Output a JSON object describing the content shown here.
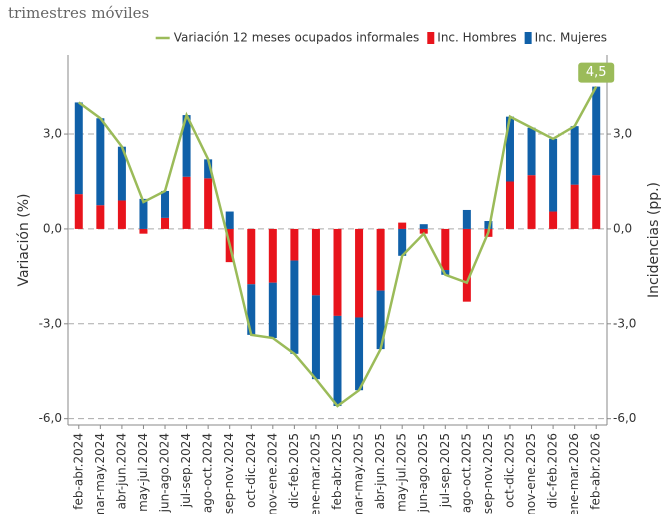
{
  "chart_data": {
    "type": "bar-line",
    "subtitle": "trimestres móviles",
    "y_label": "Variación (%)",
    "y2_label": "Incidencias (pp.)",
    "categories": [
      "feb-abr.2024",
      "mar-may.2024",
      "abr-jun.2024",
      "may-jul.2024",
      "jun-ago.2024",
      "jul-sep.2024",
      "ago-oct.2024",
      "sep-nov.2024",
      "oct-dic.2024",
      "nov-ene.2024",
      "dic-feb.2025",
      "ene-mar.2025",
      "feb-abr.2025",
      "mar-may.2025",
      "abr-jun.2025",
      "may-jul.2025",
      "jun-ago.2025",
      "jul-sep.2025",
      "ago-oct.2025",
      "sep-nov.2025",
      "oct-dic.2025",
      "nov-ene.2025",
      "dic-feb.2026",
      "ene-mar.2026",
      "feb-abr.2026"
    ],
    "series": [
      {
        "name": "Variación 12 meses ocupados informales",
        "type": "line",
        "color": "#9bbb59",
        "values": [
          4.0,
          3.5,
          2.6,
          0.85,
          1.2,
          3.6,
          2.2,
          -0.5,
          -3.35,
          -3.45,
          -3.95,
          -4.75,
          -5.6,
          -5.1,
          -3.8,
          -0.85,
          -0.15,
          -1.45,
          -1.7,
          -0.1,
          3.55,
          3.2,
          2.85,
          3.25,
          4.5
        ],
        "value_labels": [
          null,
          null,
          null,
          null,
          null,
          null,
          null,
          null,
          null,
          null,
          null,
          null,
          null,
          null,
          null,
          null,
          null,
          null,
          null,
          null,
          null,
          null,
          null,
          null,
          "4,5"
        ]
      },
      {
        "name": "Inc. Hombres",
        "type": "bar",
        "axis": "y2",
        "color": "#e8141c",
        "values": [
          1.1,
          0.75,
          0.9,
          -0.15,
          0.35,
          1.65,
          1.6,
          -1.05,
          -1.75,
          -1.7,
          -1.0,
          -2.1,
          -2.75,
          -2.8,
          -1.95,
          0.2,
          -0.15,
          -1.3,
          -2.3,
          -0.25,
          1.5,
          1.7,
          0.55,
          1.4,
          1.7
        ]
      },
      {
        "name": "Inc. Mujeres",
        "type": "bar",
        "axis": "y2",
        "color": "#1060a8",
        "values": [
          2.9,
          2.75,
          1.7,
          0.95,
          0.85,
          1.95,
          0.6,
          0.55,
          -1.6,
          -1.75,
          -2.95,
          -2.65,
          -2.85,
          -2.3,
          -1.85,
          -0.85,
          0.15,
          -0.15,
          0.6,
          0.25,
          2.05,
          1.5,
          2.3,
          1.85,
          2.8
        ]
      }
    ],
    "ylim": [
      -6.2,
      5.5
    ],
    "y2lim": [
      -6.2,
      5.5
    ],
    "yticks": [
      {
        "value": -6,
        "label": "-6,0"
      },
      {
        "value": -3,
        "label": "-3,0"
      },
      {
        "value": 0,
        "label": "0,0"
      },
      {
        "value": 3,
        "label": "3,0"
      }
    ],
    "y2ticks": [
      {
        "value": -6,
        "label": "-6,0"
      },
      {
        "value": -3,
        "label": "-3,0"
      },
      {
        "value": 0,
        "label": "0,0"
      },
      {
        "value": 3,
        "label": "3,0"
      }
    ],
    "grid": true,
    "legend": "top-right"
  }
}
